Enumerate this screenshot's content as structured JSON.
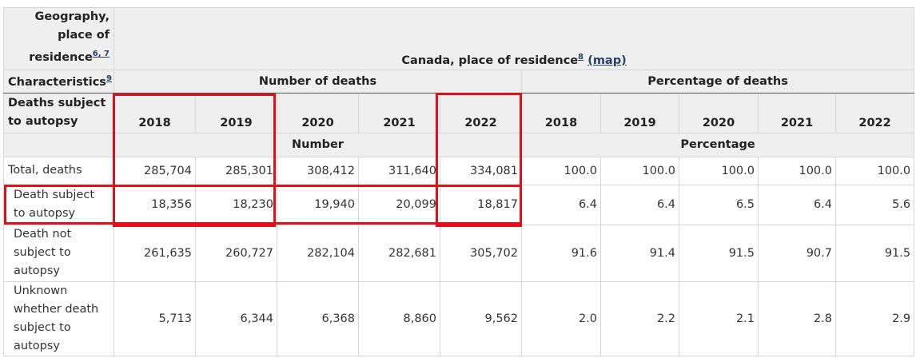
{
  "header": {
    "geo_line1": "Geography,",
    "geo_line2": "place of",
    "geo_line3": "residence",
    "geo_sup": "6, 7",
    "region": "Canada, place of residence",
    "region_sup": "8",
    "map_link": "(map)",
    "characteristics": "Characteristics",
    "characteristics_sup": "9",
    "number_of_deaths": "Number of deaths",
    "percentage_of_deaths": "Percentage of deaths",
    "autopsy_line1": "Deaths subject",
    "autopsy_line2": "to autopsy",
    "years": [
      "2018",
      "2019",
      "2020",
      "2021",
      "2022",
      "2018",
      "2019",
      "2020",
      "2021",
      "2022"
    ],
    "unit_number": "Number",
    "unit_percentage": "Percentage"
  },
  "rows": [
    {
      "label": "Total, deaths",
      "values": [
        "285,704",
        "285,301",
        "308,412",
        "311,640",
        "334,081",
        "100.0",
        "100.0",
        "100.0",
        "100.0",
        "100.0"
      ]
    },
    {
      "label": "Death subject to autopsy",
      "values": [
        "18,356",
        "18,230",
        "19,940",
        "20,099",
        "18,817",
        "6.4",
        "6.4",
        "6.5",
        "6.4",
        "5.6"
      ]
    },
    {
      "label": "Death not subject to autopsy",
      "values": [
        "261,635",
        "260,727",
        "282,104",
        "282,681",
        "305,702",
        "91.6",
        "91.4",
        "91.5",
        "90.7",
        "91.5"
      ]
    },
    {
      "label": "Unknown whether death subject to autopsy",
      "values": [
        "5,713",
        "6,344",
        "6,368",
        "8,860",
        "9,562",
        "2.0",
        "2.2",
        "2.1",
        "2.8",
        "2.9"
      ]
    }
  ],
  "accent_color": "#e0101a"
}
